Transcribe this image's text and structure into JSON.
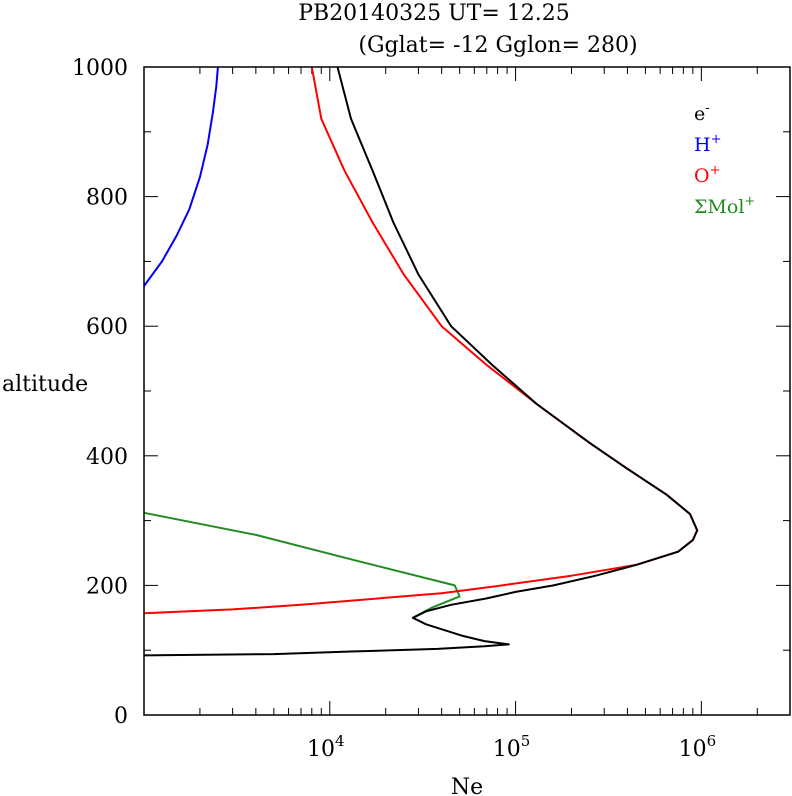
{
  "header": {
    "line1": "PB20140325   UT=  12.25",
    "line2": "(Gglat= -12   Gglon=  280)"
  },
  "chart_data": {
    "type": "line",
    "xlabel": "Ne",
    "ylabel": "altitude",
    "x_scale": "log",
    "xlim": [
      1000,
      3000000
    ],
    "ylim": [
      0,
      1000
    ],
    "x_tick_labels": [
      {
        "value": 10000,
        "base": "10",
        "exp": "4"
      },
      {
        "value": 100000,
        "base": "10",
        "exp": "5"
      },
      {
        "value": 1000000,
        "base": "10",
        "exp": "6"
      }
    ],
    "y_tick_values": [
      0,
      200,
      400,
      600,
      800,
      1000
    ],
    "legend": {
      "position": "top-right",
      "entries": [
        {
          "base": "e",
          "sup": "-",
          "color": "#000000"
        },
        {
          "base": "H",
          "sup": "+",
          "color": "#0000ff"
        },
        {
          "base": "O",
          "sup": "+",
          "color": "#ff0000"
        },
        {
          "base": "ΣMol",
          "sup": "+",
          "color": "#228b22"
        }
      ]
    },
    "series": [
      {
        "color": "#0000ff",
        "points": [
          [
            1000,
            662
          ],
          [
            1250,
            700
          ],
          [
            1500,
            740
          ],
          [
            1750,
            780
          ],
          [
            2000,
            830
          ],
          [
            2200,
            880
          ],
          [
            2350,
            930
          ],
          [
            2450,
            970
          ],
          [
            2500,
            1000
          ]
        ]
      },
      {
        "color": "#228b22",
        "points": [
          [
            1000,
            312
          ],
          [
            4000,
            278
          ],
          [
            14000,
            238
          ],
          [
            47000,
            200
          ],
          [
            50000,
            183
          ],
          [
            35000,
            165
          ],
          [
            28000,
            150
          ]
        ]
      },
      {
        "color": "#ff0000",
        "points": [
          [
            1000,
            157
          ],
          [
            3000,
            163
          ],
          [
            7000,
            170
          ],
          [
            15000,
            178
          ],
          [
            40000,
            188
          ],
          [
            80000,
            199
          ],
          [
            200000,
            215
          ],
          [
            450000,
            232
          ],
          [
            750000,
            252
          ],
          [
            900000,
            270
          ],
          [
            950000,
            285
          ],
          [
            870000,
            310
          ],
          [
            650000,
            340
          ],
          [
            400000,
            380
          ],
          [
            250000,
            420
          ],
          [
            130000,
            480
          ],
          [
            70000,
            540
          ],
          [
            40000,
            600
          ],
          [
            25000,
            680
          ],
          [
            17000,
            760
          ],
          [
            12000,
            840
          ],
          [
            9000,
            920
          ],
          [
            8000,
            1000
          ]
        ]
      },
      {
        "color": "#000000",
        "points": [
          [
            1000,
            92
          ],
          [
            5000,
            94
          ],
          [
            13000,
            98
          ],
          [
            38000,
            102
          ],
          [
            68000,
            106
          ],
          [
            92000,
            109
          ],
          [
            68000,
            114
          ],
          [
            52000,
            122
          ],
          [
            33000,
            140
          ],
          [
            28000,
            150
          ],
          [
            33000,
            160
          ],
          [
            45000,
            170
          ],
          [
            70000,
            180
          ],
          [
            100000,
            190
          ],
          [
            160000,
            200
          ],
          [
            270000,
            215
          ],
          [
            450000,
            232
          ],
          [
            750000,
            252
          ],
          [
            900000,
            270
          ],
          [
            950000,
            285
          ],
          [
            870000,
            310
          ],
          [
            650000,
            340
          ],
          [
            400000,
            380
          ],
          [
            250000,
            420
          ],
          [
            130000,
            480
          ],
          [
            75000,
            540
          ],
          [
            45000,
            600
          ],
          [
            30000,
            680
          ],
          [
            22000,
            760
          ],
          [
            17000,
            840
          ],
          [
            13000,
            920
          ],
          [
            11000,
            1000
          ]
        ]
      }
    ]
  }
}
